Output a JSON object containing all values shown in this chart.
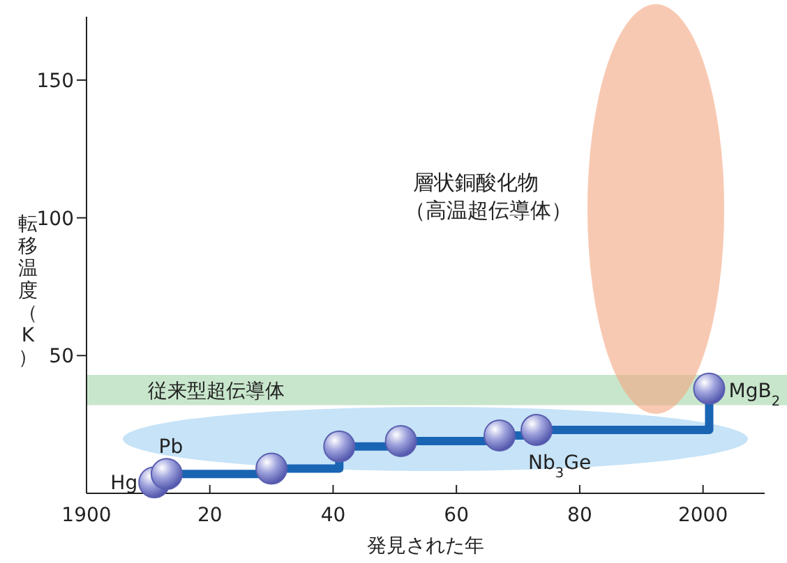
{
  "chart_data": {
    "type": "step",
    "xlabel": "発見された年",
    "ylabel": "転移温度（K）",
    "xlim": [
      1900,
      2010
    ],
    "ylim": [
      0,
      173
    ],
    "xticks": [
      {
        "value": 1900,
        "label": "1900"
      },
      {
        "value": 1920,
        "label": "20"
      },
      {
        "value": 1940,
        "label": "40"
      },
      {
        "value": 1960,
        "label": "60"
      },
      {
        "value": 1980,
        "label": "80"
      },
      {
        "value": 2000,
        "label": "2000"
      }
    ],
    "yticks": [
      50,
      100,
      150
    ],
    "marker": "circle",
    "series": [
      {
        "color": "#1a64b4",
        "x": [
          1911,
          1913,
          1930,
          1941,
          1951,
          1967,
          1973,
          2001
        ],
        "values": [
          4,
          7,
          9,
          17,
          19,
          21,
          23,
          38
        ]
      }
    ],
    "bands": [
      {
        "axis": "y",
        "from": 32,
        "to": 43,
        "label": "従来型超伝導体",
        "color": "#c8e6cc"
      }
    ],
    "annotations": [
      {
        "text": "Hg",
        "x": 1911,
        "y": 4
      },
      {
        "text": "Pb",
        "x": 1913,
        "y": 7
      },
      {
        "text": "Nb$_{3}$Ge",
        "x": 1973,
        "y": 23
      },
      {
        "text": "MgB$_{2}$",
        "x": 2001,
        "y": 38
      },
      "層状銅酸化物",
      "（高温超伝導体）"
    ]
  }
}
